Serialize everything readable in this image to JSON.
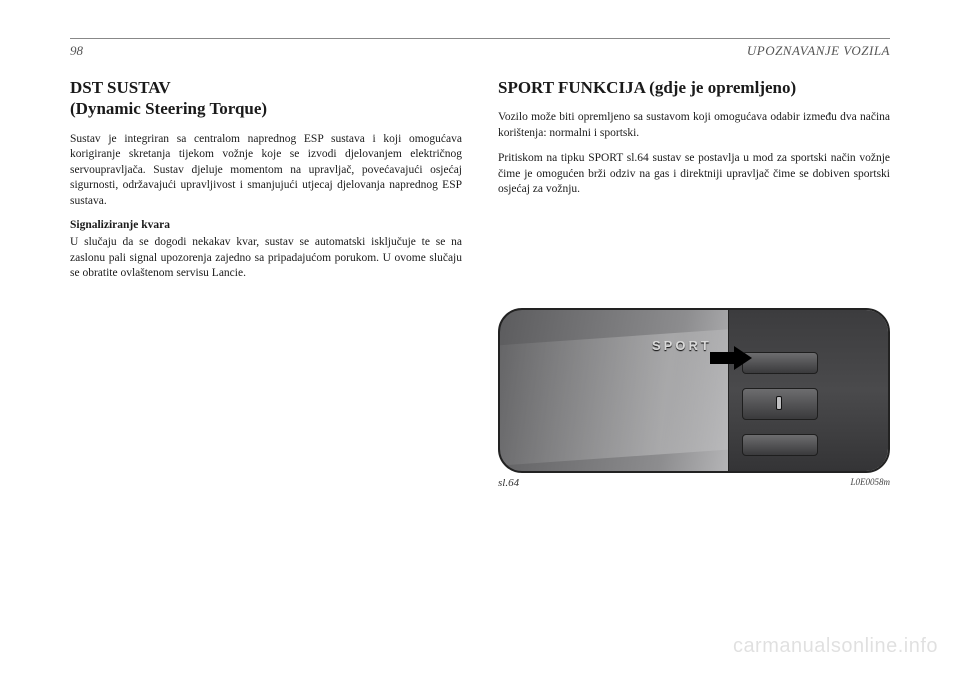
{
  "page": {
    "number": "98",
    "section": "UPOZNAVANJE VOZILA"
  },
  "left": {
    "heading_line1": "DST SUSTAV",
    "heading_line2": "(Dynamic Steering Torque)",
    "para1": "Sustav je integriran sa centralom naprednog ESP sustava i koji omogućava korigiranje skretanja tijekom vožnje koje se izvodi djelovanjem električnog servoupravljača. Sustav djeluje momentom na upravljač, povećavajući osjećaj sigurnosti, održavajući upravljivost i smanjujući utjecaj djelovanja naprednog ESP sustava.",
    "subhead": "Signaliziranje kvara",
    "para2": "U slučaju da se dogodi nekakav kvar, sustav se automatski isključuje te se na zaslonu pali signal upozorenja zajedno sa pripadajućom porukom. U ovome slučaju se obratite ovlaštenom servisu Lancie."
  },
  "right": {
    "heading": "SPORT FUNKCIJA (gdje je opremljeno)",
    "para1": "Vozilo može biti opremljeno sa sustavom koji omogućava odabir između dva načina korištenja: normalni i sportski.",
    "para2": "Pritiskom na tipku SPORT sl.64 sustav se postavlja u mod za sportski način vožnje čime je omogućen brži odziv na gas i direktniji upravljač čime se dobiven sportski osjećaj za vožnju."
  },
  "figure": {
    "button_label": "SPORT",
    "caption": "sl.64",
    "code": "L0E0058m"
  },
  "watermark": "carmanualsonline.info",
  "colors": {
    "text": "#1a1a1a",
    "header_text": "#555555",
    "rule": "#888888",
    "figure_border": "#222222",
    "panel_dark": "#3c3c3e",
    "metal_light": "#e0e0e2",
    "metal_dark": "#5c5c5e",
    "arrow": "#000000",
    "watermark": "rgba(0,0,0,0.12)"
  }
}
